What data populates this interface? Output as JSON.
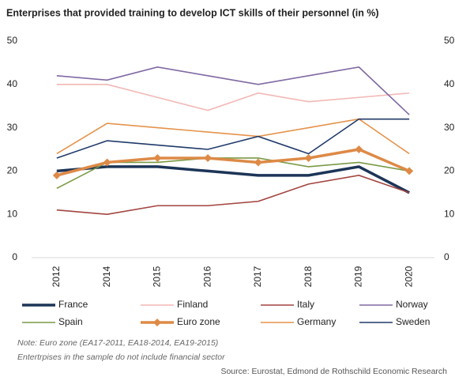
{
  "chart_data": {
    "type": "line",
    "title": "Enterprises  that provided training to develop ICT skills of their personnel (in %)",
    "categories": [
      "2012",
      "2014",
      "2015",
      "2016",
      "2017",
      "2018",
      "2019",
      "2020"
    ],
    "series": [
      {
        "name": "France",
        "color": "#1c3557",
        "values": [
          20,
          21,
          21,
          20,
          19,
          19,
          21,
          15
        ]
      },
      {
        "name": "Finland",
        "color": "#f2b8b5",
        "values": [
          40,
          40,
          37,
          34,
          38,
          36,
          37,
          38
        ]
      },
      {
        "name": "Italy",
        "color": "#a2443f",
        "values": [
          11,
          10,
          12,
          12,
          13,
          17,
          19,
          15
        ]
      },
      {
        "name": "Norway",
        "color": "#8068a3",
        "values": [
          42,
          41,
          44,
          42,
          40,
          42,
          44,
          33
        ]
      },
      {
        "name": "Spain",
        "color": "#7a9a45",
        "values": [
          16,
          22,
          22,
          23,
          23,
          21,
          22,
          20
        ]
      },
      {
        "name": "Euro zone",
        "color": "#dd8a47",
        "marker": "diamond",
        "values": [
          19,
          22,
          23,
          23,
          22,
          23,
          25,
          20
        ]
      },
      {
        "name": "Germany",
        "color": "#e5934b",
        "values": [
          24,
          31,
          30,
          29,
          28,
          30,
          32,
          24
        ]
      },
      {
        "name": "Sweden",
        "color": "#203a6a",
        "values": [
          23,
          27,
          26,
          25,
          28,
          24,
          32,
          32
        ]
      }
    ],
    "ylim": [
      0,
      50
    ],
    "yticks": [
      0,
      10,
      20,
      30,
      40,
      50
    ],
    "y2lim": [
      0,
      50
    ],
    "y2ticks": [
      0,
      10,
      20,
      30,
      40,
      50
    ],
    "notes": [
      "Note: Euro zone (EA17-2011, EA18-2014, EA19-2015)",
      "Entertrpises in the sample do not include financial sector"
    ],
    "source": "Source: Eurostat, Edmond de Rothschild Economic Research"
  }
}
